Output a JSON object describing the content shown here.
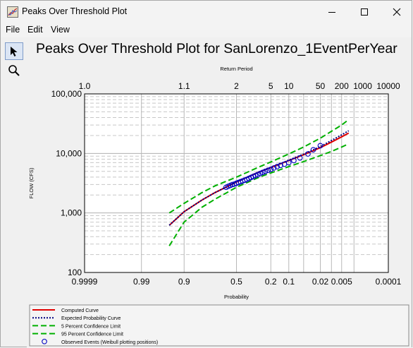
{
  "window": {
    "title": "Peaks Over Threshold Plot",
    "minimize_icon": "minimize-icon",
    "maximize_icon": "maximize-icon",
    "close_icon": "close-icon"
  },
  "menu": {
    "file": "File",
    "edit": "Edit",
    "view": "View"
  },
  "toolbar": {
    "tools": [
      {
        "name": "pointer-tool",
        "icon": "cursor-arrow-icon",
        "active": true
      },
      {
        "name": "zoom-tool",
        "icon": "magnifier-icon",
        "active": false
      }
    ]
  },
  "plot": {
    "title": "Peaks Over Threshold Plot for SanLorenzo_1EventPerYear"
  },
  "chart_data": {
    "type": "line",
    "title": "Peaks Over Threshold Plot for SanLorenzo_1EventPerYear",
    "xlabel": "Probability",
    "x2label": "Return Period",
    "ylabel": "FLOW (CFS)",
    "y_scale": "log",
    "ylim": [
      100,
      100000
    ],
    "y_ticks": [
      {
        "value": 100,
        "label": "100"
      },
      {
        "value": 1000,
        "label": "1,000"
      },
      {
        "value": 10000,
        "label": "10,000"
      },
      {
        "value": 100000,
        "label": "100,000"
      }
    ],
    "x_scale": "normal-probability (exceedance)",
    "xlim": [
      0.9999,
      0.0001
    ],
    "x_ticks": [
      {
        "value": 0.9999,
        "label": "0.9999"
      },
      {
        "value": 0.99,
        "label": "0.99"
      },
      {
        "value": 0.9,
        "label": "0.9"
      },
      {
        "value": 0.5,
        "label": "0.5"
      },
      {
        "value": 0.2,
        "label": "0.2"
      },
      {
        "value": 0.1,
        "label": "0.1"
      },
      {
        "value": 0.02,
        "label": "0.02"
      },
      {
        "value": 0.005,
        "label": "0.005"
      },
      {
        "value": 0.0001,
        "label": "0.0001"
      }
    ],
    "x2_ticks": [
      {
        "value": 0.9999,
        "label": "1.0"
      },
      {
        "value": 0.9,
        "label": "1.1"
      },
      {
        "value": 0.5,
        "label": "2"
      },
      {
        "value": 0.2,
        "label": "5"
      },
      {
        "value": 0.1,
        "label": "10"
      },
      {
        "value": 0.02,
        "label": "50"
      },
      {
        "value": 0.005,
        "label": "200"
      },
      {
        "value": 0.001,
        "label": "1000"
      },
      {
        "value": 0.0001,
        "label": "10000"
      }
    ],
    "grid": true,
    "legend_position": "bottom",
    "series": [
      {
        "name": "Computed Curve",
        "color": "#e00000",
        "style": "solid",
        "x": [
          0.95,
          0.9,
          0.8,
          0.7,
          0.5,
          0.3,
          0.2,
          0.1,
          0.05,
          0.02,
          0.01,
          0.005,
          0.003
        ],
        "y": [
          620,
          1050,
          1650,
          2200,
          3300,
          4800,
          5800,
          7600,
          9500,
          12500,
          15500,
          19000,
          22000
        ]
      },
      {
        "name": "Expected Probability Curve",
        "color": "#000080",
        "style": "dotted",
        "x": [
          0.95,
          0.9,
          0.8,
          0.7,
          0.5,
          0.3,
          0.2,
          0.1,
          0.05,
          0.02,
          0.01,
          0.005,
          0.003
        ],
        "y": [
          620,
          1050,
          1650,
          2200,
          3300,
          4800,
          5800,
          7700,
          9700,
          13000,
          16500,
          20500,
          24000
        ]
      },
      {
        "name": "5 Percent Confidence Limit",
        "color": "#00b000",
        "style": "dashed",
        "x": [
          0.95,
          0.9,
          0.8,
          0.7,
          0.5,
          0.3,
          0.2,
          0.1,
          0.05,
          0.02,
          0.01,
          0.005,
          0.003
        ],
        "y": [
          1000,
          1450,
          2200,
          2850,
          4000,
          5800,
          7200,
          9800,
          12800,
          18000,
          23500,
          30000,
          37000
        ]
      },
      {
        "name": "95 Percent Confidence Limit",
        "color": "#00b000",
        "style": "dashed",
        "x": [
          0.95,
          0.9,
          0.8,
          0.7,
          0.5,
          0.3,
          0.2,
          0.1,
          0.05,
          0.02,
          0.01,
          0.005,
          0.003
        ],
        "y": [
          280,
          700,
          1250,
          1700,
          2700,
          3900,
          4700,
          6000,
          7300,
          9200,
          10800,
          12800,
          14500
        ]
      },
      {
        "name": "Observed Events (Weibull plotting positions)",
        "color": "#0000c0",
        "style": "marker-circle",
        "x": [
          0.6,
          0.58,
          0.56,
          0.54,
          0.52,
          0.5,
          0.48,
          0.46,
          0.44,
          0.42,
          0.4,
          0.38,
          0.36,
          0.34,
          0.32,
          0.3,
          0.28,
          0.26,
          0.24,
          0.22,
          0.2,
          0.18,
          0.16,
          0.14,
          0.12,
          0.1,
          0.08,
          0.06,
          0.04,
          0.03,
          0.02
        ],
        "y": [
          2700,
          2800,
          2900,
          3000,
          3050,
          3150,
          3250,
          3350,
          3450,
          3550,
          3650,
          3800,
          3950,
          4100,
          4250,
          4400,
          4600,
          4800,
          5000,
          5200,
          5400,
          5700,
          6000,
          6300,
          6600,
          7000,
          7600,
          8400,
          9800,
          11500,
          13500
        ]
      }
    ]
  }
}
